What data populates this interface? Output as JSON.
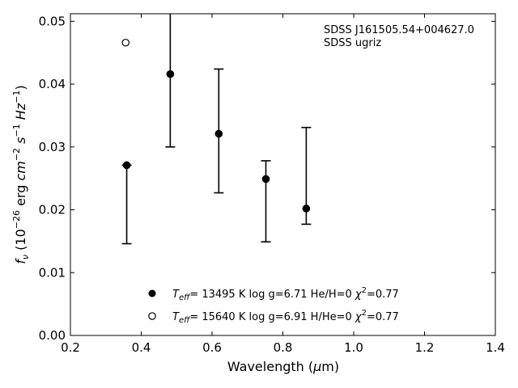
{
  "chart_data": {
    "type": "scatter",
    "xlabel": "Wavelength (μm)",
    "ylabel": "f_ν (10^-26 erg cm^-2 s^-1 Hz^-1)",
    "xlim": [
      0.2,
      1.4
    ],
    "ylim": [
      0.0,
      0.0512
    ],
    "x_ticks": [
      "0.2",
      "0.4",
      "0.6",
      "0.8",
      "1.0",
      "1.2",
      "1.4"
    ],
    "y_ticks": [
      "0.00",
      "0.01",
      "0.02",
      "0.03",
      "0.04",
      "0.05"
    ],
    "annotations": [
      "SDSS J161505.54+004627.0",
      "SDSS ugriz"
    ],
    "grid": false,
    "legend_position": "bottom-center",
    "series": [
      {
        "name": "T_eff= 13495 K  log g=6.71  He/H=0  χ²=0.77",
        "marker": "filled-circle",
        "x": [
          0.359,
          0.482,
          0.619,
          0.752,
          0.866
        ],
        "y": [
          0.0271,
          0.0416,
          0.0321,
          0.0249,
          0.0202
        ],
        "y_err_low": [
          0.0146,
          0.03,
          0.0227,
          0.0149,
          0.0177
        ],
        "y_err_high": [
          0.0271,
          0.0512,
          0.0424,
          0.0278,
          0.0331
        ]
      },
      {
        "name": "T_eff= 15640 K  log g=6.91  H/He=0  χ²=0.77",
        "marker": "open-circle",
        "x": [
          0.356
        ],
        "y": [
          0.0466
        ]
      }
    ]
  }
}
